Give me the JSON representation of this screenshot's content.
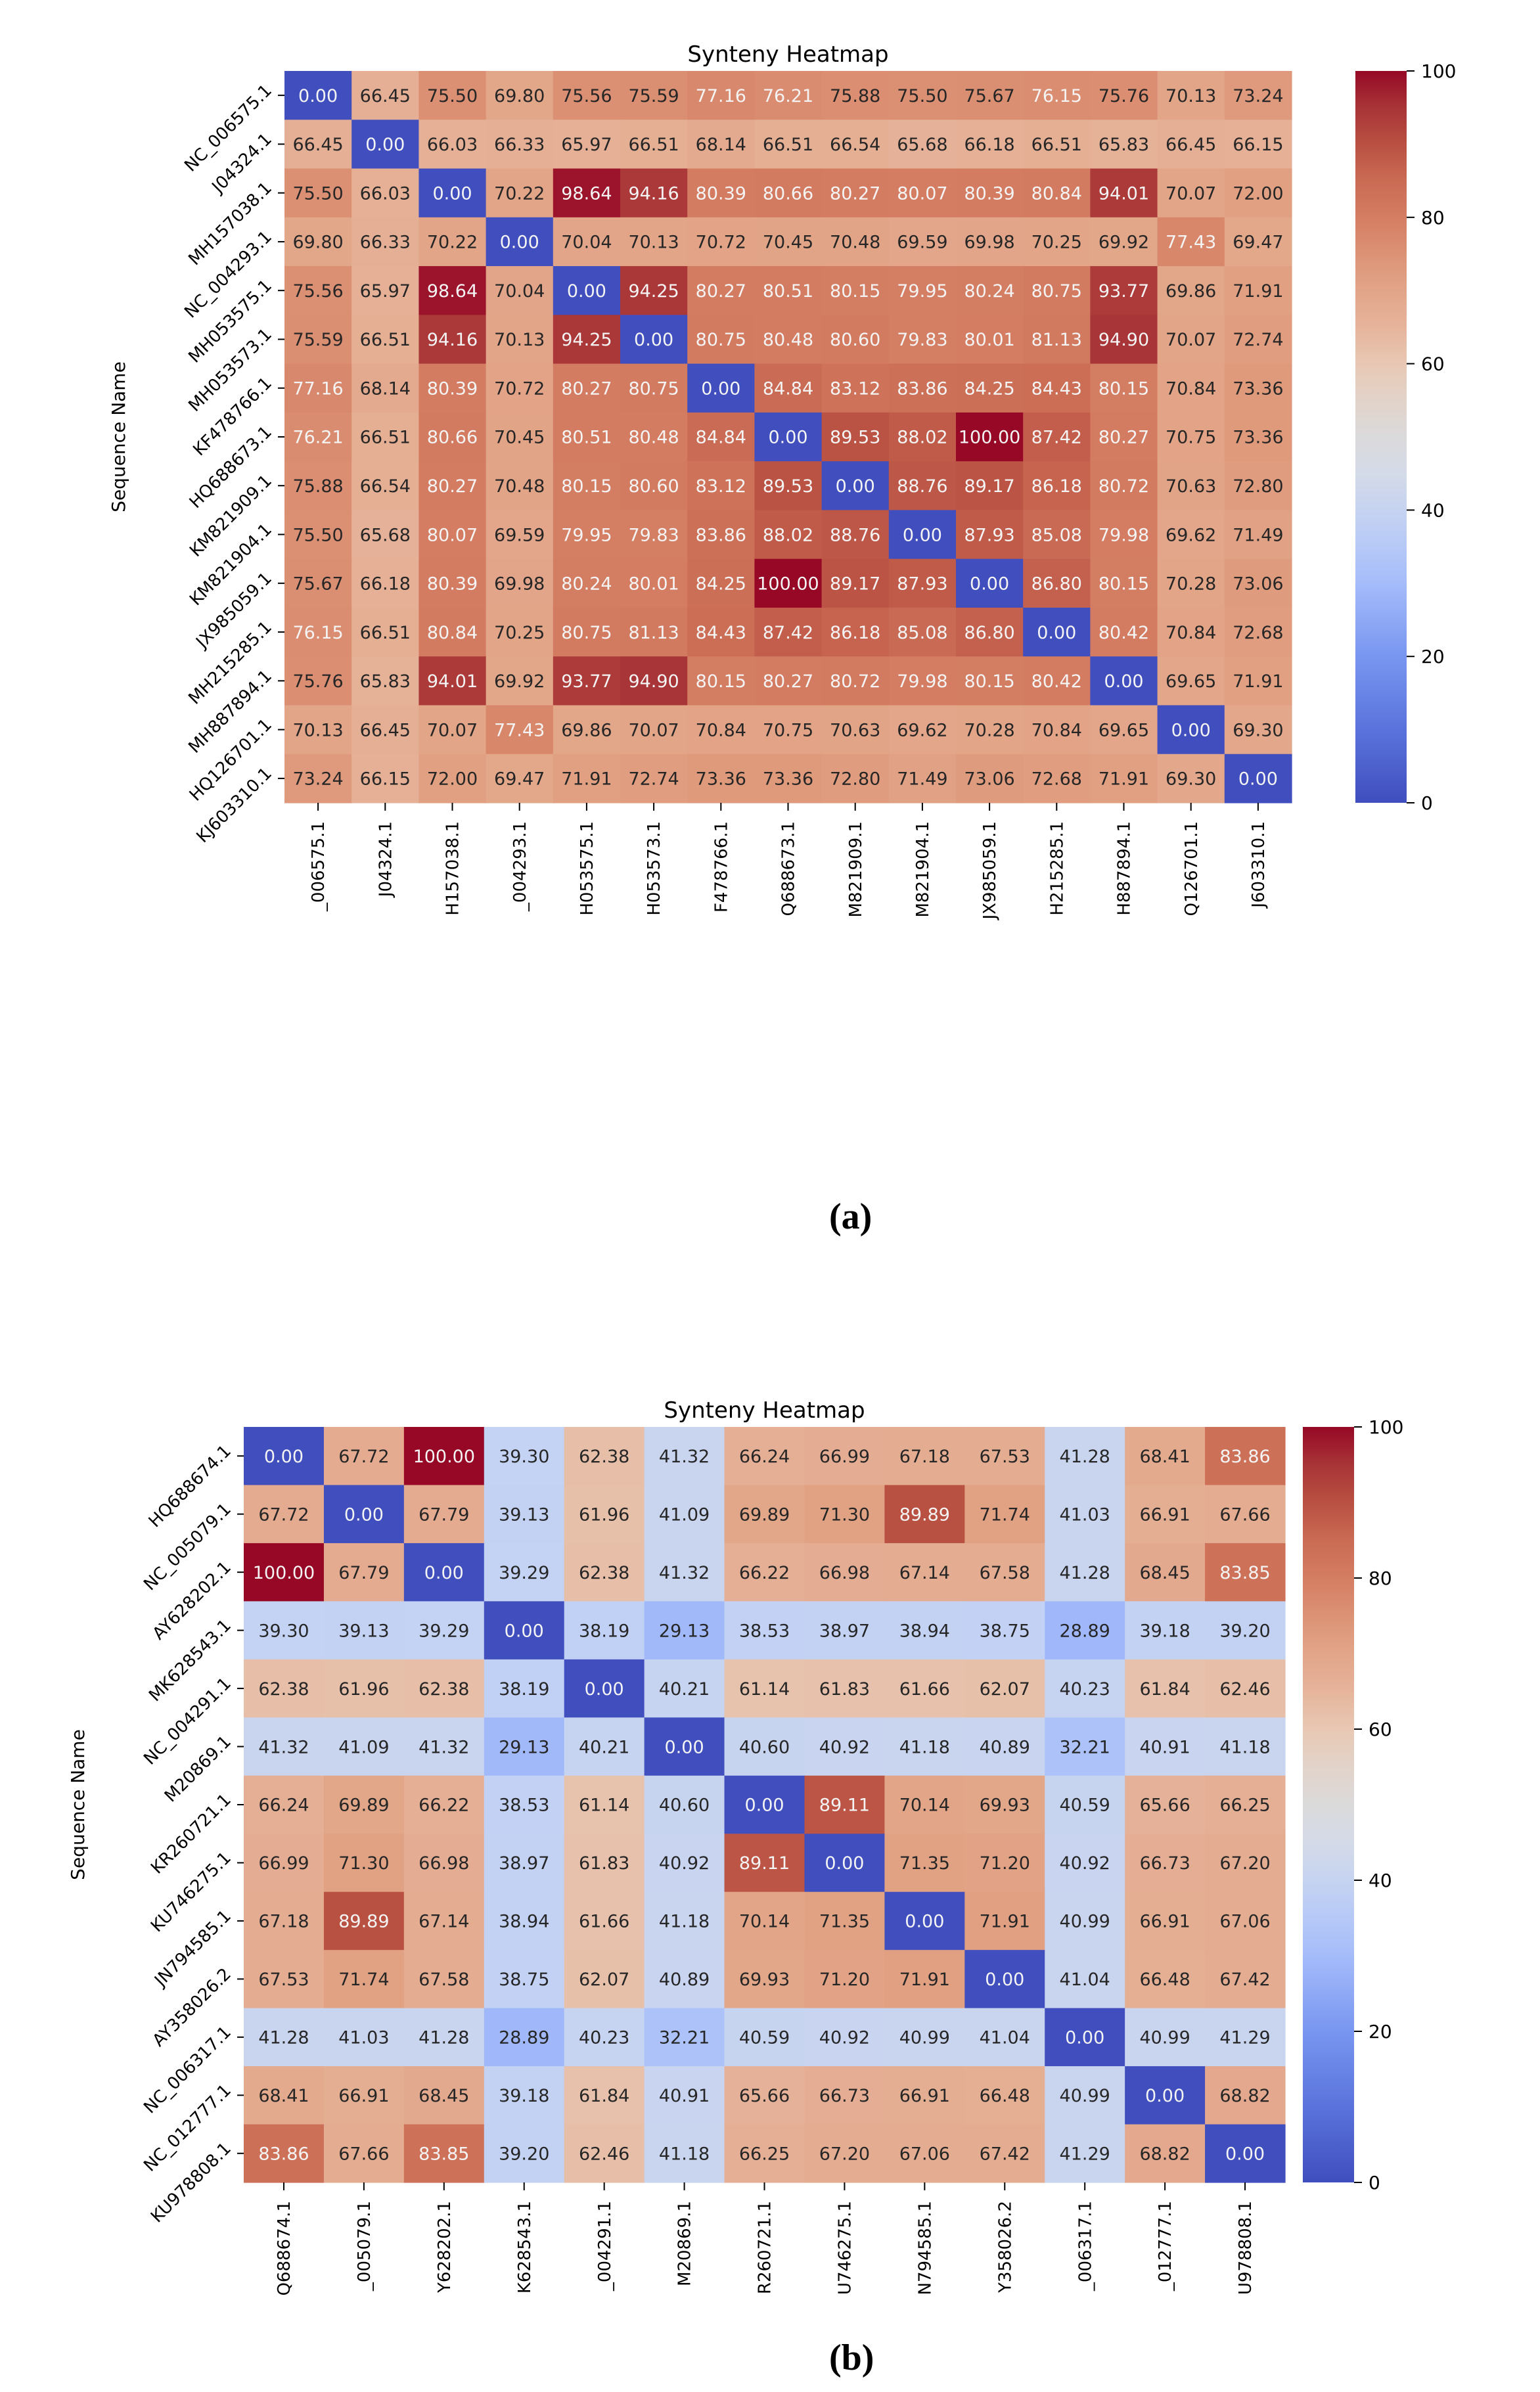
{
  "chart_data": [
    {
      "type": "heatmap",
      "panel_label": "(a)",
      "title": "Synteny Heatmap",
      "ylabel": "Sequence Name",
      "xlabel": "",
      "row_labels": [
        "NC_006575.1",
        "J04324.1",
        "MH157038.1",
        "NC_004293.1",
        "MH053575.1",
        "MH053573.1",
        "KF478766.1",
        "HQ688673.1",
        "KM821909.1",
        "KM821904.1",
        "JX985059.1",
        "MH215285.1",
        "MH887894.1",
        "HQ126701.1",
        "KJ603310.1"
      ],
      "col_labels": [
        "_006575.1",
        "J04324.1",
        "H157038.1",
        "_004293.1",
        "H053575.1",
        "H053573.1",
        "F478766.1",
        "Q688673.1",
        "M821909.1",
        "M821904.1",
        "JX985059.1",
        "H215285.1",
        "H887894.1",
        "Q126701.1",
        "J603310.1"
      ],
      "colorbar": {
        "colormap": "coolwarm",
        "min": 0,
        "max": 100,
        "ticks": [
          0,
          20,
          40,
          60,
          80,
          100
        ]
      },
      "values": [
        [
          0.0,
          66.45,
          75.5,
          69.8,
          75.56,
          75.59,
          77.16,
          76.21,
          75.88,
          75.5,
          75.67,
          76.15,
          75.76,
          70.13,
          73.24
        ],
        [
          66.45,
          0.0,
          66.03,
          66.33,
          65.97,
          66.51,
          68.14,
          66.51,
          66.54,
          65.68,
          66.18,
          66.51,
          65.83,
          66.45,
          66.15
        ],
        [
          75.5,
          66.03,
          0.0,
          70.22,
          98.64,
          94.16,
          80.39,
          80.66,
          80.27,
          80.07,
          80.39,
          80.84,
          94.01,
          70.07,
          72.0
        ],
        [
          69.8,
          66.33,
          70.22,
          0.0,
          70.04,
          70.13,
          70.72,
          70.45,
          70.48,
          69.59,
          69.98,
          70.25,
          69.92,
          77.43,
          69.47
        ],
        [
          75.56,
          65.97,
          98.64,
          70.04,
          0.0,
          94.25,
          80.27,
          80.51,
          80.15,
          79.95,
          80.24,
          80.75,
          93.77,
          69.86,
          71.91
        ],
        [
          75.59,
          66.51,
          94.16,
          70.13,
          94.25,
          0.0,
          80.75,
          80.48,
          80.6,
          79.83,
          80.01,
          81.13,
          94.9,
          70.07,
          72.74
        ],
        [
          77.16,
          68.14,
          80.39,
          70.72,
          80.27,
          80.75,
          0.0,
          84.84,
          83.12,
          83.86,
          84.25,
          84.43,
          80.15,
          70.84,
          73.36
        ],
        [
          76.21,
          66.51,
          80.66,
          70.45,
          80.51,
          80.48,
          84.84,
          0.0,
          89.53,
          88.02,
          100.0,
          87.42,
          80.27,
          70.75,
          73.36
        ],
        [
          75.88,
          66.54,
          80.27,
          70.48,
          80.15,
          80.6,
          83.12,
          89.53,
          0.0,
          88.76,
          89.17,
          86.18,
          80.72,
          70.63,
          72.8
        ],
        [
          75.5,
          65.68,
          80.07,
          69.59,
          79.95,
          79.83,
          83.86,
          88.02,
          88.76,
          0.0,
          87.93,
          85.08,
          79.98,
          69.62,
          71.49
        ],
        [
          75.67,
          66.18,
          80.39,
          69.98,
          80.24,
          80.01,
          84.25,
          100.0,
          89.17,
          87.93,
          0.0,
          86.8,
          80.15,
          70.28,
          73.06
        ],
        [
          76.15,
          66.51,
          80.84,
          70.25,
          80.75,
          81.13,
          84.43,
          87.42,
          86.18,
          85.08,
          86.8,
          0.0,
          80.42,
          70.84,
          72.68
        ],
        [
          75.76,
          65.83,
          94.01,
          69.92,
          93.77,
          94.9,
          80.15,
          80.27,
          80.72,
          79.98,
          80.15,
          80.42,
          0.0,
          69.65,
          71.91
        ],
        [
          70.13,
          66.45,
          70.07,
          77.43,
          69.86,
          70.07,
          70.84,
          70.75,
          70.63,
          69.62,
          70.28,
          70.84,
          69.65,
          0.0,
          69.3
        ],
        [
          73.24,
          66.15,
          72.0,
          69.47,
          71.91,
          72.74,
          73.36,
          73.36,
          72.8,
          71.49,
          73.06,
          72.68,
          71.91,
          69.3,
          0.0
        ]
      ]
    },
    {
      "type": "heatmap",
      "panel_label": "(b)",
      "title": "Synteny Heatmap",
      "ylabel": "Sequence Name",
      "xlabel": "",
      "row_labels": [
        "HQ688674.1",
        "NC_005079.1",
        "AY628202.1",
        "MK628543.1",
        "NC_004291.1",
        "M20869.1",
        "KR260721.1",
        "KU746275.1",
        "JN794585.1",
        "AY358026.2",
        "NC_006317.1",
        "NC_012777.1",
        "KU978808.1"
      ],
      "col_labels": [
        "Q688674.1",
        "_005079.1",
        "Y628202.1",
        "K628543.1",
        "_004291.1",
        "M20869.1",
        "R260721.1",
        "U746275.1",
        "N794585.1",
        "Y358026.2",
        "_006317.1",
        "_012777.1",
        "U978808.1"
      ],
      "colorbar": {
        "colormap": "coolwarm",
        "min": 0,
        "max": 100,
        "ticks": [
          0,
          20,
          40,
          60,
          80,
          100
        ]
      },
      "values": [
        [
          0.0,
          67.72,
          100.0,
          39.3,
          62.38,
          41.32,
          66.24,
          66.99,
          67.18,
          67.53,
          41.28,
          68.41,
          83.86
        ],
        [
          67.72,
          0.0,
          67.79,
          39.13,
          61.96,
          41.09,
          69.89,
          71.3,
          89.89,
          71.74,
          41.03,
          66.91,
          67.66
        ],
        [
          100.0,
          67.79,
          0.0,
          39.29,
          62.38,
          41.32,
          66.22,
          66.98,
          67.14,
          67.58,
          41.28,
          68.45,
          83.85
        ],
        [
          39.3,
          39.13,
          39.29,
          0.0,
          38.19,
          29.13,
          38.53,
          38.97,
          38.94,
          38.75,
          28.89,
          39.18,
          39.2
        ],
        [
          62.38,
          61.96,
          62.38,
          38.19,
          0.0,
          40.21,
          61.14,
          61.83,
          61.66,
          62.07,
          40.23,
          61.84,
          62.46
        ],
        [
          41.32,
          41.09,
          41.32,
          29.13,
          40.21,
          0.0,
          40.6,
          40.92,
          41.18,
          40.89,
          32.21,
          40.91,
          41.18
        ],
        [
          66.24,
          69.89,
          66.22,
          38.53,
          61.14,
          40.6,
          0.0,
          89.11,
          70.14,
          69.93,
          40.59,
          65.66,
          66.25
        ],
        [
          66.99,
          71.3,
          66.98,
          38.97,
          61.83,
          40.92,
          89.11,
          0.0,
          71.35,
          71.2,
          40.92,
          66.73,
          67.2
        ],
        [
          67.18,
          89.89,
          67.14,
          38.94,
          61.66,
          41.18,
          70.14,
          71.35,
          0.0,
          71.91,
          40.99,
          66.91,
          67.06
        ],
        [
          67.53,
          71.74,
          67.58,
          38.75,
          62.07,
          40.89,
          69.93,
          71.2,
          71.91,
          0.0,
          41.04,
          66.48,
          67.42
        ],
        [
          41.28,
          41.03,
          41.28,
          28.89,
          40.23,
          32.21,
          40.59,
          40.92,
          40.99,
          41.04,
          0.0,
          40.99,
          41.29
        ],
        [
          68.41,
          66.91,
          68.45,
          39.18,
          61.84,
          40.91,
          65.66,
          66.73,
          66.91,
          66.48,
          40.99,
          0.0,
          68.82
        ],
        [
          83.86,
          67.66,
          83.85,
          39.2,
          62.46,
          41.18,
          66.25,
          67.2,
          67.06,
          67.42,
          41.29,
          68.82,
          0.0
        ]
      ]
    }
  ]
}
